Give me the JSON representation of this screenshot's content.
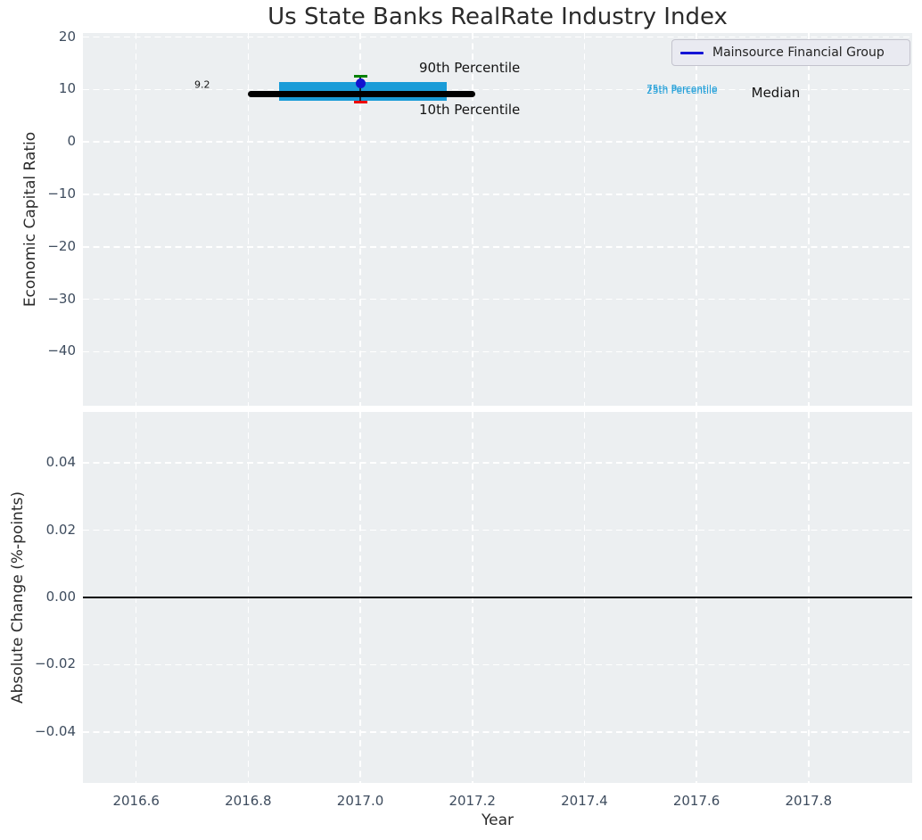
{
  "title": "Us State Banks RealRate Industry Index",
  "legend": {
    "label": "Mainsource Financial Group",
    "line_color": "#1414d6",
    "position": "upper right"
  },
  "colors": {
    "figure_bg": "#ffffff",
    "axes_bg": "#eceff1",
    "grid": "#ffffff",
    "tick_label": "#3e4c5e",
    "text": "#141414",
    "box_fill": "#1a9cd8",
    "median_line": "#000000",
    "p90_cap": "#008000",
    "p10_cap": "#ed0000",
    "company_point": "#1212d0",
    "whisker": "#12293a",
    "zero_line": "#000000"
  },
  "chart_data": [
    {
      "type": "box",
      "title": "Us State Banks RealRate Industry Index",
      "xlabel": "",
      "ylabel": "Economic Capital Ratio",
      "xlim": [
        2016.505,
        2017.985
      ],
      "ylim": [
        -50.3,
        20.8
      ],
      "grid": true,
      "legend_entries": [
        "Mainsource Financial Group"
      ],
      "legend_position": "upper right",
      "x_ticks": [
        {
          "v": 2016.6,
          "label": "2016.6"
        },
        {
          "v": 2016.8,
          "label": "2016.8"
        },
        {
          "v": 2017.0,
          "label": "2017.0"
        },
        {
          "v": 2017.2,
          "label": "2017.2"
        },
        {
          "v": 2017.4,
          "label": "2017.4"
        },
        {
          "v": 2017.6,
          "label": "2017.6"
        },
        {
          "v": 2017.8,
          "label": "2017.8"
        }
      ],
      "y_ticks": [
        {
          "v": 20,
          "label": "20"
        },
        {
          "v": 10,
          "label": "10"
        },
        {
          "v": 0,
          "label": "0"
        },
        {
          "v": -10,
          "label": "−10"
        },
        {
          "v": -20,
          "label": "−20"
        },
        {
          "v": -30,
          "label": "−30"
        },
        {
          "v": -40,
          "label": "−40"
        }
      ],
      "box_series": {
        "x": 2017.0,
        "median": 9.2,
        "p25": 7.9,
        "p75": 11.4,
        "p10": 7.7,
        "p90": 12.5,
        "box_x_range": [
          2016.855,
          2017.155
        ],
        "median_x_range": [
          2016.8,
          2017.205
        ],
        "cap_half_width": 0.012,
        "company_point": {
          "name": "Mainsource Financial Group",
          "x": 2017.0,
          "y": 11.2
        }
      },
      "annotations": [
        {
          "text": "9.2",
          "x": 2016.704,
          "y": 11.0,
          "size": 11,
          "color": "#141414"
        },
        {
          "text": "90th Percentile",
          "x": 2017.105,
          "y": 14.1,
          "size": 15,
          "color": "#141414"
        },
        {
          "text": "10th Percentile",
          "x": 2017.105,
          "y": 6.1,
          "size": 15,
          "color": "#141414"
        },
        {
          "text": "75th Percentile",
          "x": 2017.511,
          "y": 10.0,
          "size": 10.5,
          "color": "#1a9cd8"
        },
        {
          "text": "25th Percentile",
          "x": 2017.511,
          "y": 9.72,
          "size": 10.5,
          "color": "#1a9cd8"
        },
        {
          "text": "Median",
          "x": 2017.698,
          "y": 9.4,
          "size": 15,
          "color": "#141414"
        }
      ]
    },
    {
      "type": "line",
      "title": "",
      "xlabel": "Year",
      "ylabel": "Absolute Change (%-points)",
      "xlim": [
        2016.505,
        2017.985
      ],
      "ylim": [
        -0.0551,
        0.0551
      ],
      "grid": true,
      "zero_line": 0.0,
      "series": [],
      "x_ticks": [
        {
          "v": 2016.6,
          "label": "2016.6"
        },
        {
          "v": 2016.8,
          "label": "2016.8"
        },
        {
          "v": 2017.0,
          "label": "2017.0"
        },
        {
          "v": 2017.2,
          "label": "2017.2"
        },
        {
          "v": 2017.4,
          "label": "2017.4"
        },
        {
          "v": 2017.6,
          "label": "2017.6"
        },
        {
          "v": 2017.8,
          "label": "2017.8"
        }
      ],
      "y_ticks": [
        {
          "v": 0.04,
          "label": "0.04"
        },
        {
          "v": 0.02,
          "label": "0.02"
        },
        {
          "v": 0.0,
          "label": "0.00"
        },
        {
          "v": -0.02,
          "label": "−0.02"
        },
        {
          "v": -0.04,
          "label": "−0.04"
        }
      ]
    }
  ]
}
